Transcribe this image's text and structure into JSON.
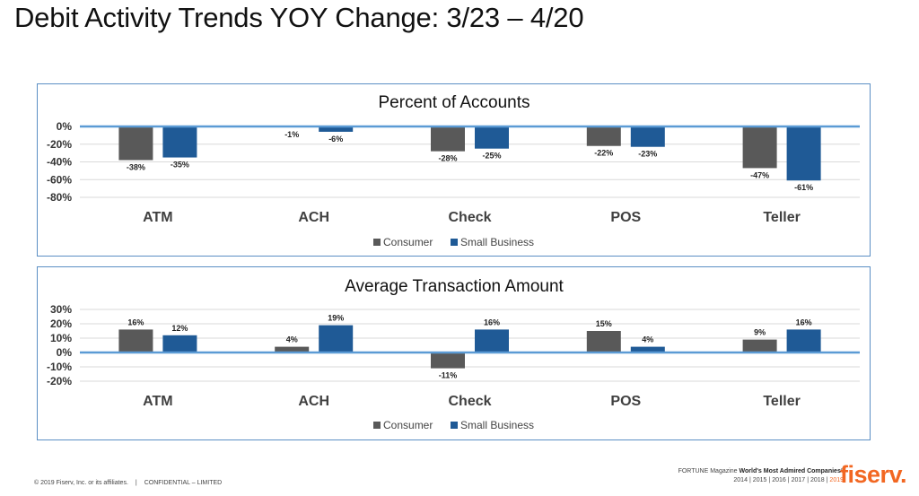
{
  "slide": {
    "title": "Debit Activity Trends YOY Change: 3/23 – 4/20"
  },
  "colors": {
    "consumer": "#595959",
    "small_business": "#1f5a96",
    "zero_line": "#5b9bd5",
    "grid": "#d9d9d9",
    "frame": "#5b8fc4",
    "brand": "#f26722"
  },
  "chart_data": [
    {
      "type": "bar",
      "title": "Percent of Accounts",
      "categories": [
        "ATM",
        "ACH",
        "Check",
        "POS",
        "Teller"
      ],
      "series": [
        {
          "name": "Consumer",
          "values": [
            -38,
            -1,
            -28,
            -22,
            -47
          ],
          "labels": [
            "-38%",
            "-1%",
            "-28%",
            "-22%",
            "-47%"
          ]
        },
        {
          "name": "Small Business",
          "values": [
            -35,
            -6,
            -25,
            -23,
            -61
          ],
          "labels": [
            "-35%",
            "-6%",
            "-25%",
            "-23%",
            "-61%"
          ]
        }
      ],
      "ylim": [
        -80,
        0
      ],
      "yticks": [
        0,
        -20,
        -40,
        -60,
        -80
      ],
      "ytick_labels": [
        "0%",
        "-20%",
        "-40%",
        "-60%",
        "-80%"
      ],
      "xlabel": "",
      "ylabel": "",
      "legend": "bottom-center",
      "grid": true
    },
    {
      "type": "bar",
      "title": "Average Transaction Amount",
      "categories": [
        "ATM",
        "ACH",
        "Check",
        "POS",
        "Teller"
      ],
      "series": [
        {
          "name": "Consumer",
          "values": [
            16,
            4,
            -11,
            15,
            9
          ],
          "labels": [
            "16%",
            "4%",
            "-11%",
            "15%",
            "9%"
          ]
        },
        {
          "name": "Small Business",
          "values": [
            12,
            19,
            16,
            4,
            16
          ],
          "labels": [
            "12%",
            "19%",
            "16%",
            "4%",
            "16%"
          ]
        }
      ],
      "ylim": [
        -20,
        30
      ],
      "yticks": [
        30,
        20,
        10,
        0,
        -10,
        -20
      ],
      "ytick_labels": [
        "30%",
        "20%",
        "10%",
        "0%",
        "-10%",
        "-20%"
      ],
      "xlabel": "",
      "ylabel": "",
      "legend": "bottom-center",
      "grid": true
    }
  ],
  "footer": {
    "copyright": "© 2019 Fiserv, Inc. or its affiliates.",
    "separator": "|",
    "confidential": "CONFIDENTIAL – LIMITED",
    "fortune_prefix": "FORTUNE Magazine",
    "fortune_bold": "World's Most Admired Companies®",
    "years": [
      "2014",
      "2015",
      "2016",
      "2017",
      "2018",
      "2019"
    ],
    "logo": "fiserv."
  }
}
